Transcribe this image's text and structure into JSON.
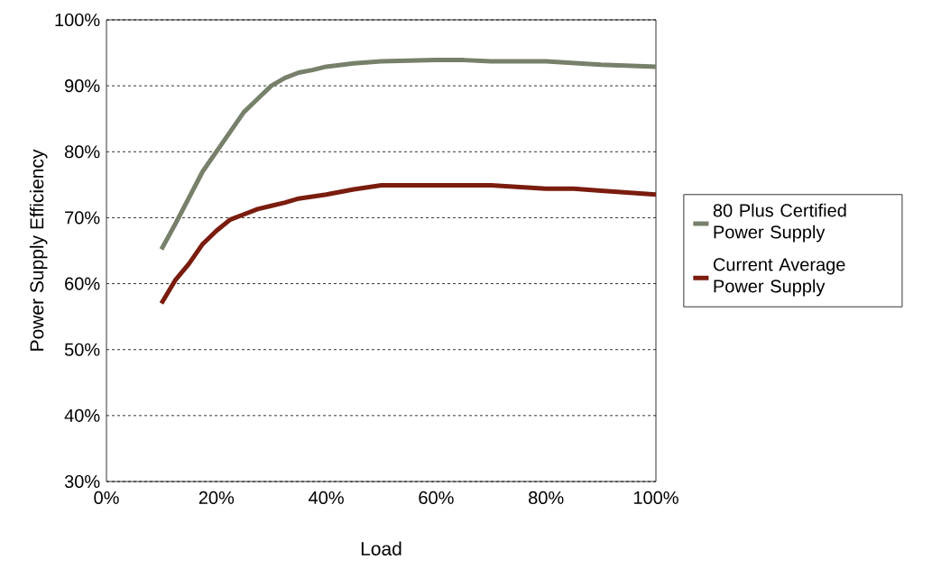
{
  "chart_data": {
    "type": "line",
    "xlabel": "Load",
    "ylabel": "Power Supply Efficiency",
    "xlim": [
      0,
      100
    ],
    "ylim": [
      30,
      100
    ],
    "xticks": [
      {
        "value": 0,
        "label": "0%"
      },
      {
        "value": 20,
        "label": "20%"
      },
      {
        "value": 40,
        "label": "40%"
      },
      {
        "value": 60,
        "label": "60%"
      },
      {
        "value": 80,
        "label": "80%"
      },
      {
        "value": 100,
        "label": "100%"
      }
    ],
    "yticks": [
      {
        "value": 30,
        "label": "30%"
      },
      {
        "value": 40,
        "label": "40%"
      },
      {
        "value": 50,
        "label": "50%"
      },
      {
        "value": 60,
        "label": "60%"
      },
      {
        "value": 70,
        "label": "70%"
      },
      {
        "value": 80,
        "label": "80%"
      },
      {
        "value": 90,
        "label": "90%"
      },
      {
        "value": 100,
        "label": "100%"
      }
    ],
    "grid": "y",
    "legend": "right",
    "marker": "none",
    "line_style": "solid",
    "series": [
      {
        "name": "80 Plus Certified Power Supply",
        "color": "#76806a",
        "x": [
          10,
          12.5,
          15,
          17.5,
          20,
          22.5,
          25,
          27.5,
          30,
          32.5,
          35,
          37.5,
          40,
          45,
          50,
          60,
          65,
          70,
          80,
          90,
          100
        ],
        "values": [
          65.2,
          69,
          73,
          77,
          80,
          83,
          86,
          88,
          90,
          91.2,
          92,
          92.4,
          92.9,
          93.4,
          93.7,
          93.9,
          93.9,
          93.7,
          93.7,
          93.2,
          92.9
        ]
      },
      {
        "name": "Current Average Power Supply",
        "color": "#7a1c0e",
        "x": [
          10,
          12.5,
          15,
          17.5,
          20,
          22.5,
          25,
          27.5,
          30,
          32.5,
          35,
          40,
          45,
          50,
          70,
          80,
          85,
          90,
          100
        ],
        "values": [
          57,
          60.5,
          63,
          66,
          68,
          69.7,
          70.5,
          71.3,
          71.8,
          72.3,
          72.9,
          73.5,
          74.3,
          74.9,
          74.9,
          74.4,
          74.4,
          74.1,
          73.5
        ]
      }
    ]
  }
}
